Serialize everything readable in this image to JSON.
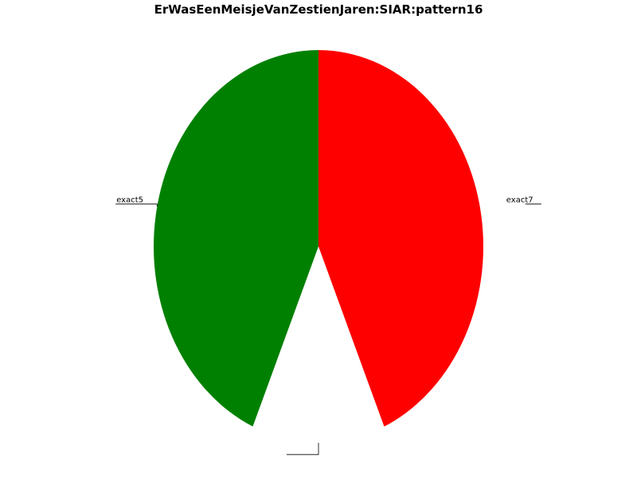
{
  "chart_data": {
    "type": "pie",
    "title": "ErWasEenMeisjeVanZestienJaren:SIAR:pattern16",
    "slices": [
      {
        "label": "exact5",
        "value": 1,
        "color": "#008000"
      },
      {
        "label": "",
        "value": 0.3,
        "color": "#ffffff"
      },
      {
        "label": "exact7",
        "value": 1,
        "color": "#ff0000"
      }
    ]
  }
}
